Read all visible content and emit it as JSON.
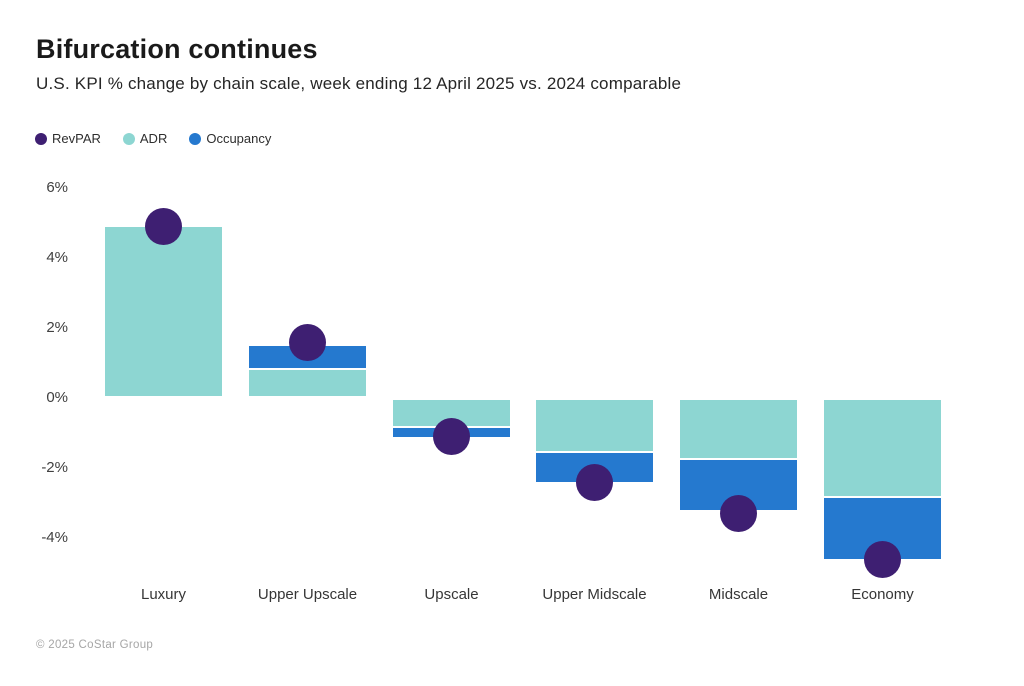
{
  "header": {
    "title": "Bifurcation continues",
    "subtitle": "U.S. KPI % change by chain scale, week ending 12 April 2025 vs. 2024 comparable"
  },
  "legend": [
    {
      "label": "RevPAR",
      "color": "#3E1F72"
    },
    {
      "label": "ADR",
      "color": "#8DD6D2"
    },
    {
      "label": "Occupancy",
      "color": "#2579CF"
    }
  ],
  "footer": {
    "copyright": "© 2025 CoStar Group"
  },
  "colors": {
    "revpar": "#3E1F72",
    "adr": "#8DD6D2",
    "occupancy": "#2579CF"
  },
  "chart_data": {
    "type": "bar",
    "title": "Bifurcation continues",
    "subtitle": "U.S. KPI % change by chain scale, week ending 12 April 2025 vs. 2024 comparable",
    "categories": [
      "Luxury",
      "Upper Upscale",
      "Upscale",
      "Upper Midscale",
      "Midscale",
      "Economy"
    ],
    "series": [
      {
        "name": "ADR",
        "render": "stacked-bar",
        "color": "#8DD6D2",
        "values": [
          4.9,
          0.8,
          -0.8,
          -1.5,
          -1.7,
          -2.8
        ]
      },
      {
        "name": "Occupancy",
        "render": "stacked-bar",
        "color": "#2579CF",
        "values": [
          0.0,
          0.7,
          -0.3,
          -0.9,
          -1.5,
          -1.8
        ]
      },
      {
        "name": "RevPAR",
        "render": "point",
        "color": "#3E1F72",
        "values": [
          4.9,
          1.6,
          -1.1,
          -2.4,
          -3.3,
          -4.6
        ]
      }
    ],
    "stacking": "ADR and Occupancy stack outward from zero; RevPAR drawn as a dot at its value",
    "xlabel": "",
    "ylabel": "",
    "ylim": [
      -5,
      6
    ],
    "yticks": [
      6,
      4,
      2,
      0,
      -2,
      -4
    ],
    "ytick_format": "percent",
    "grid": false,
    "legend_position": "top-left"
  }
}
